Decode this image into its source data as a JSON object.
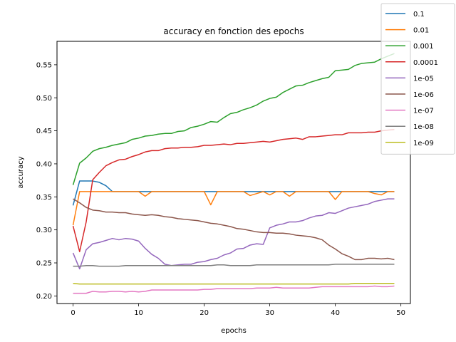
{
  "chart_data": {
    "type": "line",
    "title": "accuracy en fonction des epochs",
    "xlabel": "epochs",
    "ylabel": "accuracy",
    "xlim": [
      -2.45,
      51.45
    ],
    "ylim": [
      0.1885,
      0.5855
    ],
    "xticks": [
      0,
      10,
      20,
      30,
      40,
      50
    ],
    "yticks": [
      0.2,
      0.25,
      0.3,
      0.35,
      0.4,
      0.45,
      0.5,
      0.55
    ],
    "ytick_labels": [
      "0.20",
      "0.25",
      "0.30",
      "0.35",
      "0.40",
      "0.45",
      "0.50",
      "0.55"
    ],
    "grid": false,
    "legend_position": "top-right",
    "x": [
      0,
      1,
      2,
      3,
      4,
      5,
      6,
      7,
      8,
      9,
      10,
      11,
      12,
      13,
      14,
      15,
      16,
      17,
      18,
      19,
      20,
      21,
      22,
      23,
      24,
      25,
      26,
      27,
      28,
      29,
      30,
      31,
      32,
      33,
      34,
      35,
      36,
      37,
      38,
      39,
      40,
      41,
      42,
      43,
      44,
      45,
      46,
      47,
      48,
      49
    ],
    "series": [
      {
        "name": "0.1",
        "color": "#1f77b4",
        "values": [
          0.337,
          0.374,
          0.374,
          0.374,
          0.372,
          0.367,
          0.358,
          0.358,
          0.358,
          0.358,
          0.358,
          0.358,
          0.358,
          0.358,
          0.358,
          0.358,
          0.358,
          0.358,
          0.358,
          0.358,
          0.358,
          0.358,
          0.358,
          0.358,
          0.358,
          0.358,
          0.358,
          0.358,
          0.358,
          0.358,
          0.358,
          0.358,
          0.358,
          0.358,
          0.358,
          0.358,
          0.358,
          0.358,
          0.358,
          0.358,
          0.358,
          0.358,
          0.358,
          0.358,
          0.358,
          0.358,
          0.358,
          0.358,
          0.358,
          0.358
        ]
      },
      {
        "name": "0.01",
        "color": "#ff7f0e",
        "values": [
          0.307,
          0.358,
          0.358,
          0.358,
          0.358,
          0.358,
          0.358,
          0.358,
          0.358,
          0.358,
          0.358,
          0.351,
          0.358,
          0.358,
          0.358,
          0.358,
          0.358,
          0.358,
          0.358,
          0.358,
          0.358,
          0.338,
          0.358,
          0.358,
          0.358,
          0.358,
          0.358,
          0.352,
          0.355,
          0.358,
          0.353,
          0.358,
          0.358,
          0.351,
          0.358,
          0.358,
          0.358,
          0.358,
          0.358,
          0.358,
          0.346,
          0.358,
          0.358,
          0.358,
          0.358,
          0.358,
          0.355,
          0.353,
          0.358,
          0.358
        ]
      },
      {
        "name": "0.001",
        "color": "#2ca02c",
        "values": [
          0.368,
          0.401,
          0.409,
          0.419,
          0.423,
          0.425,
          0.428,
          0.43,
          0.432,
          0.437,
          0.439,
          0.442,
          0.443,
          0.445,
          0.446,
          0.446,
          0.449,
          0.45,
          0.455,
          0.457,
          0.46,
          0.464,
          0.463,
          0.47,
          0.476,
          0.478,
          0.482,
          0.485,
          0.489,
          0.495,
          0.499,
          0.501,
          0.508,
          0.513,
          0.518,
          0.519,
          0.523,
          0.526,
          0.529,
          0.531,
          0.541,
          0.542,
          0.543,
          0.549,
          0.552,
          0.553,
          0.554,
          0.559,
          0.563,
          0.567
        ]
      },
      {
        "name": "0.0001",
        "color": "#d62728",
        "values": [
          0.306,
          0.267,
          0.312,
          0.376,
          0.387,
          0.397,
          0.402,
          0.406,
          0.407,
          0.411,
          0.414,
          0.418,
          0.42,
          0.42,
          0.423,
          0.424,
          0.424,
          0.425,
          0.425,
          0.426,
          0.428,
          0.428,
          0.429,
          0.43,
          0.429,
          0.431,
          0.431,
          0.432,
          0.433,
          0.434,
          0.433,
          0.435,
          0.437,
          0.438,
          0.439,
          0.437,
          0.441,
          0.441,
          0.442,
          0.443,
          0.444,
          0.444,
          0.447,
          0.447,
          0.447,
          0.448,
          0.448,
          0.45,
          0.451,
          0.452
        ]
      },
      {
        "name": "1e-05",
        "color": "#9467bd",
        "values": [
          0.265,
          0.241,
          0.27,
          0.279,
          0.281,
          0.284,
          0.287,
          0.285,
          0.287,
          0.286,
          0.283,
          0.272,
          0.263,
          0.257,
          0.248,
          0.246,
          0.247,
          0.248,
          0.248,
          0.251,
          0.252,
          0.255,
          0.257,
          0.262,
          0.265,
          0.271,
          0.272,
          0.277,
          0.279,
          0.278,
          0.303,
          0.307,
          0.309,
          0.312,
          0.312,
          0.314,
          0.318,
          0.321,
          0.322,
          0.326,
          0.325,
          0.329,
          0.333,
          0.335,
          0.337,
          0.339,
          0.343,
          0.345,
          0.347,
          0.347
        ]
      },
      {
        "name": "1e-06",
        "color": "#8c564b",
        "values": [
          0.347,
          0.341,
          0.334,
          0.33,
          0.329,
          0.327,
          0.327,
          0.326,
          0.326,
          0.324,
          0.323,
          0.322,
          0.323,
          0.322,
          0.32,
          0.319,
          0.317,
          0.316,
          0.315,
          0.314,
          0.312,
          0.31,
          0.309,
          0.307,
          0.305,
          0.302,
          0.301,
          0.299,
          0.297,
          0.296,
          0.296,
          0.295,
          0.295,
          0.294,
          0.292,
          0.291,
          0.29,
          0.288,
          0.285,
          0.277,
          0.271,
          0.264,
          0.26,
          0.255,
          0.255,
          0.257,
          0.257,
          0.256,
          0.257,
          0.255
        ]
      },
      {
        "name": "1e-07",
        "color": "#e377c2",
        "values": [
          0.204,
          0.204,
          0.204,
          0.207,
          0.206,
          0.206,
          0.207,
          0.207,
          0.206,
          0.207,
          0.206,
          0.207,
          0.209,
          0.209,
          0.209,
          0.209,
          0.209,
          0.209,
          0.209,
          0.209,
          0.21,
          0.21,
          0.211,
          0.211,
          0.211,
          0.211,
          0.211,
          0.211,
          0.212,
          0.212,
          0.212,
          0.213,
          0.212,
          0.212,
          0.212,
          0.212,
          0.212,
          0.213,
          0.214,
          0.214,
          0.214,
          0.214,
          0.214,
          0.214,
          0.214,
          0.214,
          0.215,
          0.214,
          0.214,
          0.215
        ]
      },
      {
        "name": "1e-08",
        "color": "#7f7f7f",
        "values": [
          0.245,
          0.245,
          0.246,
          0.246,
          0.245,
          0.245,
          0.245,
          0.245,
          0.246,
          0.246,
          0.246,
          0.246,
          0.246,
          0.246,
          0.246,
          0.246,
          0.246,
          0.246,
          0.246,
          0.246,
          0.246,
          0.246,
          0.247,
          0.247,
          0.246,
          0.246,
          0.246,
          0.246,
          0.247,
          0.247,
          0.247,
          0.247,
          0.247,
          0.247,
          0.247,
          0.247,
          0.247,
          0.247,
          0.247,
          0.247,
          0.248,
          0.248,
          0.248,
          0.248,
          0.248,
          0.248,
          0.248,
          0.248,
          0.248,
          0.248
        ]
      },
      {
        "name": "1e-09",
        "color": "#bcbd22",
        "values": [
          0.219,
          0.218,
          0.218,
          0.218,
          0.218,
          0.218,
          0.218,
          0.218,
          0.218,
          0.218,
          0.218,
          0.218,
          0.218,
          0.218,
          0.218,
          0.218,
          0.218,
          0.218,
          0.218,
          0.218,
          0.218,
          0.218,
          0.218,
          0.218,
          0.218,
          0.218,
          0.218,
          0.218,
          0.218,
          0.218,
          0.218,
          0.218,
          0.218,
          0.218,
          0.218,
          0.218,
          0.218,
          0.218,
          0.218,
          0.218,
          0.218,
          0.218,
          0.218,
          0.219,
          0.219,
          0.219,
          0.219,
          0.219,
          0.219,
          0.219
        ]
      }
    ]
  }
}
